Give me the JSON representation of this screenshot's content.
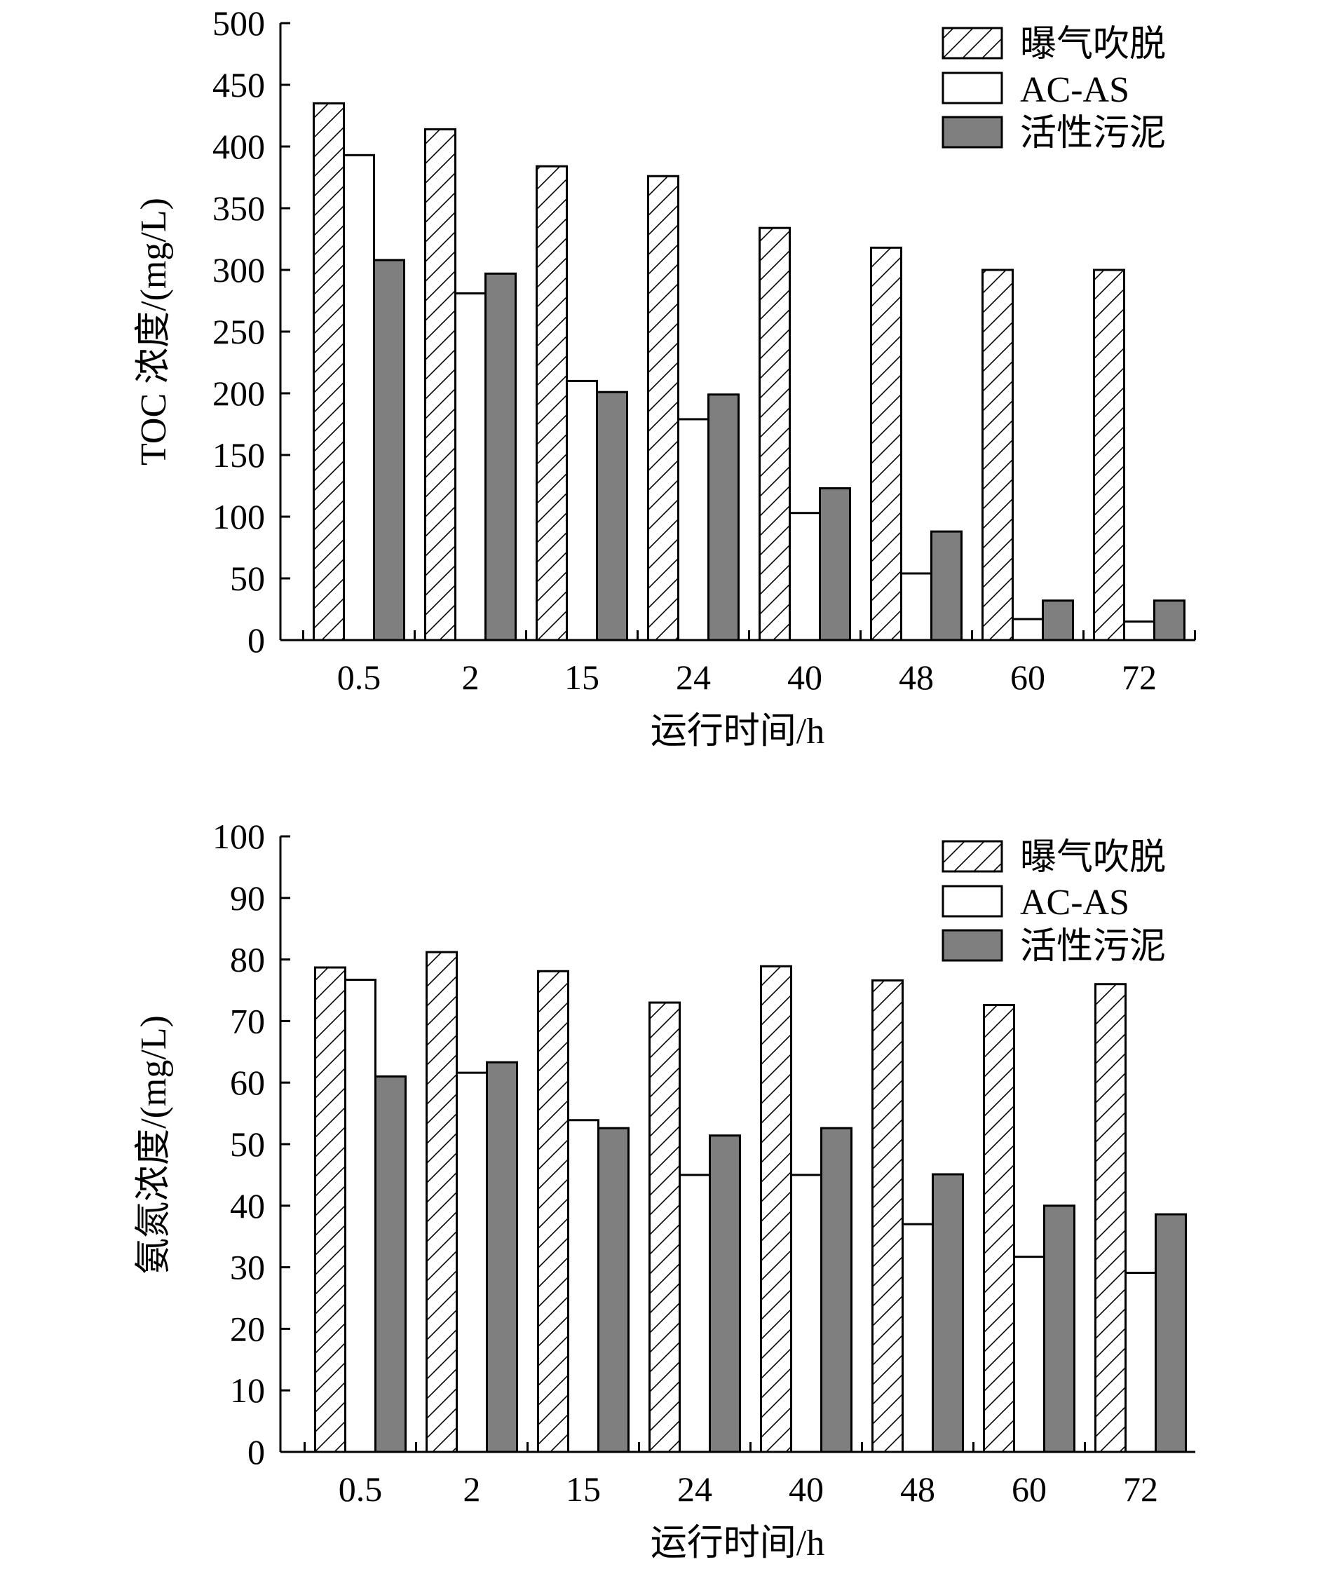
{
  "colors": {
    "background": "#ffffff",
    "axis": "#000000",
    "sludge_fill": "#7f7f7f",
    "acas_fill": "#ffffff",
    "hatch_line": "#000000"
  },
  "chart_data": [
    {
      "type": "bar",
      "title": "",
      "xlabel": "运行时间/h",
      "ylabel": "TOC 浓度/(mg/L)",
      "categories": [
        "0.5",
        "2",
        "15",
        "24",
        "40",
        "48",
        "60",
        "72"
      ],
      "ylim": [
        0,
        500
      ],
      "yticks": [
        0,
        50,
        100,
        150,
        200,
        250,
        300,
        350,
        400,
        450,
        500
      ],
      "grid": false,
      "legend_position": "top-right",
      "series": [
        {
          "name": "曝气吹脱",
          "pattern": "hatch",
          "values": [
            435,
            414,
            384,
            376,
            334,
            318,
            300,
            300
          ]
        },
        {
          "name": "AC-AS",
          "pattern": "white",
          "values": [
            393,
            281,
            210,
            179,
            103,
            54,
            17,
            15
          ]
        },
        {
          "name": "活性污泥",
          "pattern": "gray",
          "values": [
            308,
            297,
            201,
            199,
            123,
            88,
            32,
            32
          ]
        }
      ]
    },
    {
      "type": "bar",
      "title": "",
      "xlabel": "运行时间/h",
      "ylabel": "氨氮浓度/(mg/L)",
      "categories": [
        "0.5",
        "2",
        "15",
        "24",
        "40",
        "48",
        "60",
        "72"
      ],
      "ylim": [
        0,
        100
      ],
      "yticks": [
        0,
        10,
        20,
        30,
        40,
        50,
        60,
        70,
        80,
        90,
        100
      ],
      "grid": false,
      "legend_position": "top-right",
      "series": [
        {
          "name": "曝气吹脱",
          "pattern": "hatch",
          "values": [
            78.7,
            81.2,
            78.1,
            73.0,
            78.9,
            76.6,
            72.6,
            76.0
          ]
        },
        {
          "name": "AC-AS",
          "pattern": "white",
          "values": [
            76.7,
            61.6,
            53.9,
            45.0,
            45.0,
            37.0,
            31.7,
            29.1
          ]
        },
        {
          "name": "活性污泥",
          "pattern": "gray",
          "values": [
            61.0,
            63.3,
            52.6,
            51.4,
            52.6,
            45.1,
            40.0,
            38.6
          ]
        }
      ]
    }
  ]
}
